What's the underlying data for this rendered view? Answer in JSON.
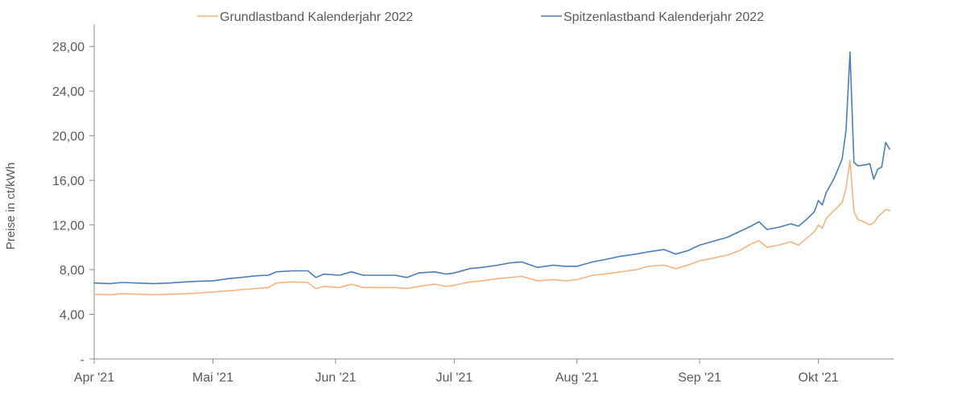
{
  "chart_data": {
    "type": "line",
    "title": "",
    "xlabel": "",
    "ylabel": "Preise in ct/kWh",
    "ylim": [
      0,
      30
    ],
    "yticks": [
      {
        "value": 0,
        "label": "-"
      },
      {
        "value": 4,
        "label": "4,00"
      },
      {
        "value": 8,
        "label": "8,00"
      },
      {
        "value": 12,
        "label": "12,00"
      },
      {
        "value": 16,
        "label": "16,00"
      },
      {
        "value": 20,
        "label": "20,00"
      },
      {
        "value": 24,
        "label": "24,00"
      },
      {
        "value": 28,
        "label": "28,00"
      }
    ],
    "xlim": [
      "2021-04-01",
      "2021-10-20"
    ],
    "xticks": [
      {
        "date": "2021-04-01",
        "label": "Apr '21"
      },
      {
        "date": "2021-05-01",
        "label": "Mai '21"
      },
      {
        "date": "2021-06-01",
        "label": "Jun '21"
      },
      {
        "date": "2021-07-01",
        "label": "Jul '21"
      },
      {
        "date": "2021-08-01",
        "label": "Aug '21"
      },
      {
        "date": "2021-09-01",
        "label": "Sep '21"
      },
      {
        "date": "2021-10-01",
        "label": "Okt '21"
      }
    ],
    "grid": false,
    "legend": "top",
    "series": [
      {
        "name": "Grundlastband Kalenderjahr 2022",
        "color": "#f7b37f",
        "points": [
          [
            "2021-04-01",
            5.8
          ],
          [
            "2021-04-05",
            5.75
          ],
          [
            "2021-04-08",
            5.85
          ],
          [
            "2021-04-12",
            5.8
          ],
          [
            "2021-04-16",
            5.75
          ],
          [
            "2021-04-20",
            5.8
          ],
          [
            "2021-04-24",
            5.85
          ],
          [
            "2021-04-27",
            5.9
          ],
          [
            "2021-05-01",
            6.0
          ],
          [
            "2021-05-05",
            6.1
          ],
          [
            "2021-05-08",
            6.2
          ],
          [
            "2021-05-12",
            6.3
          ],
          [
            "2021-05-15",
            6.4
          ],
          [
            "2021-05-17",
            6.8
          ],
          [
            "2021-05-21",
            6.9
          ],
          [
            "2021-05-25",
            6.85
          ],
          [
            "2021-05-27",
            6.3
          ],
          [
            "2021-05-29",
            6.5
          ],
          [
            "2021-06-02",
            6.4
          ],
          [
            "2021-06-05",
            6.7
          ],
          [
            "2021-06-08",
            6.4
          ],
          [
            "2021-06-12",
            6.4
          ],
          [
            "2021-06-16",
            6.4
          ],
          [
            "2021-06-19",
            6.3
          ],
          [
            "2021-06-22",
            6.5
          ],
          [
            "2021-06-26",
            6.7
          ],
          [
            "2021-06-29",
            6.5
          ],
          [
            "2021-07-01",
            6.6
          ],
          [
            "2021-07-05",
            6.9
          ],
          [
            "2021-07-08",
            7.0
          ],
          [
            "2021-07-12",
            7.2
          ],
          [
            "2021-07-15",
            7.3
          ],
          [
            "2021-07-18",
            7.4
          ],
          [
            "2021-07-22",
            7.0
          ],
          [
            "2021-07-26",
            7.1
          ],
          [
            "2021-07-29",
            7.0
          ],
          [
            "2021-08-01",
            7.1
          ],
          [
            "2021-08-05",
            7.5
          ],
          [
            "2021-08-08",
            7.6
          ],
          [
            "2021-08-12",
            7.8
          ],
          [
            "2021-08-16",
            8.0
          ],
          [
            "2021-08-19",
            8.3
          ],
          [
            "2021-08-23",
            8.4
          ],
          [
            "2021-08-26",
            8.1
          ],
          [
            "2021-08-29",
            8.4
          ],
          [
            "2021-09-01",
            8.8
          ],
          [
            "2021-09-04",
            9.0
          ],
          [
            "2021-09-08",
            9.3
          ],
          [
            "2021-09-11",
            9.7
          ],
          [
            "2021-09-14",
            10.3
          ],
          [
            "2021-09-16",
            10.6
          ],
          [
            "2021-09-18",
            10.0
          ],
          [
            "2021-09-21",
            10.2
          ],
          [
            "2021-09-24",
            10.5
          ],
          [
            "2021-09-26",
            10.2
          ],
          [
            "2021-09-28",
            10.8
          ],
          [
            "2021-09-30",
            11.4
          ],
          [
            "2021-10-01",
            12.0
          ],
          [
            "2021-10-02",
            11.7
          ],
          [
            "2021-10-03",
            12.6
          ],
          [
            "2021-10-05",
            13.3
          ],
          [
            "2021-10-07",
            14.0
          ],
          [
            "2021-10-08",
            15.3
          ],
          [
            "2021-10-09",
            17.8
          ],
          [
            "2021-10-10",
            13.2
          ],
          [
            "2021-10-11",
            12.5
          ],
          [
            "2021-10-13",
            12.2
          ],
          [
            "2021-10-14",
            12.0
          ],
          [
            "2021-10-15",
            12.2
          ],
          [
            "2021-10-16",
            12.7
          ],
          [
            "2021-10-18",
            13.4
          ],
          [
            "2021-10-19",
            13.3
          ]
        ]
      },
      {
        "name": "Spitzenlastband Kalenderjahr 2022",
        "color": "#4a7ebb",
        "points": [
          [
            "2021-04-01",
            6.8
          ],
          [
            "2021-04-05",
            6.75
          ],
          [
            "2021-04-08",
            6.85
          ],
          [
            "2021-04-12",
            6.8
          ],
          [
            "2021-04-16",
            6.75
          ],
          [
            "2021-04-20",
            6.8
          ],
          [
            "2021-04-24",
            6.9
          ],
          [
            "2021-04-27",
            6.95
          ],
          [
            "2021-05-01",
            7.0
          ],
          [
            "2021-05-05",
            7.2
          ],
          [
            "2021-05-08",
            7.3
          ],
          [
            "2021-05-12",
            7.45
          ],
          [
            "2021-05-15",
            7.5
          ],
          [
            "2021-05-17",
            7.8
          ],
          [
            "2021-05-21",
            7.9
          ],
          [
            "2021-05-25",
            7.9
          ],
          [
            "2021-05-27",
            7.3
          ],
          [
            "2021-05-29",
            7.6
          ],
          [
            "2021-06-02",
            7.5
          ],
          [
            "2021-06-05",
            7.8
          ],
          [
            "2021-06-08",
            7.5
          ],
          [
            "2021-06-12",
            7.5
          ],
          [
            "2021-06-16",
            7.5
          ],
          [
            "2021-06-19",
            7.3
          ],
          [
            "2021-06-22",
            7.7
          ],
          [
            "2021-06-26",
            7.8
          ],
          [
            "2021-06-29",
            7.6
          ],
          [
            "2021-07-01",
            7.7
          ],
          [
            "2021-07-05",
            8.1
          ],
          [
            "2021-07-08",
            8.2
          ],
          [
            "2021-07-12",
            8.4
          ],
          [
            "2021-07-15",
            8.6
          ],
          [
            "2021-07-18",
            8.7
          ],
          [
            "2021-07-22",
            8.2
          ],
          [
            "2021-07-26",
            8.4
          ],
          [
            "2021-07-29",
            8.3
          ],
          [
            "2021-08-01",
            8.3
          ],
          [
            "2021-08-05",
            8.7
          ],
          [
            "2021-08-08",
            8.9
          ],
          [
            "2021-08-12",
            9.2
          ],
          [
            "2021-08-16",
            9.4
          ],
          [
            "2021-08-19",
            9.6
          ],
          [
            "2021-08-23",
            9.8
          ],
          [
            "2021-08-26",
            9.4
          ],
          [
            "2021-08-29",
            9.7
          ],
          [
            "2021-09-01",
            10.2
          ],
          [
            "2021-09-04",
            10.5
          ],
          [
            "2021-09-08",
            10.9
          ],
          [
            "2021-09-11",
            11.4
          ],
          [
            "2021-09-14",
            11.9
          ],
          [
            "2021-09-16",
            12.3
          ],
          [
            "2021-09-18",
            11.6
          ],
          [
            "2021-09-21",
            11.8
          ],
          [
            "2021-09-24",
            12.1
          ],
          [
            "2021-09-26",
            11.9
          ],
          [
            "2021-09-28",
            12.5
          ],
          [
            "2021-09-30",
            13.2
          ],
          [
            "2021-10-01",
            14.2
          ],
          [
            "2021-10-02",
            13.8
          ],
          [
            "2021-10-03",
            14.9
          ],
          [
            "2021-10-05",
            16.2
          ],
          [
            "2021-10-07",
            17.9
          ],
          [
            "2021-10-08",
            20.5
          ],
          [
            "2021-10-09",
            27.5
          ],
          [
            "2021-10-10",
            17.6
          ],
          [
            "2021-10-11",
            17.3
          ],
          [
            "2021-10-13",
            17.4
          ],
          [
            "2021-10-14",
            17.5
          ],
          [
            "2021-10-15",
            16.1
          ],
          [
            "2021-10-16",
            17.0
          ],
          [
            "2021-10-17",
            17.2
          ],
          [
            "2021-10-18",
            19.4
          ],
          [
            "2021-10-19",
            18.8
          ]
        ]
      }
    ]
  }
}
